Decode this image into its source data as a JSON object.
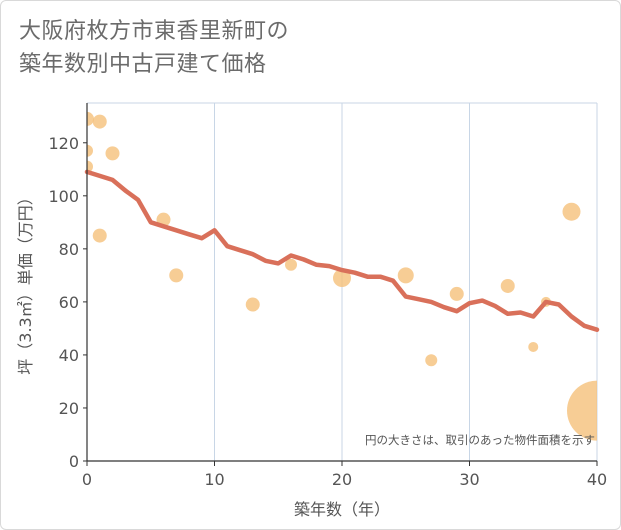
{
  "title_line1": "大阪府枚方市東香里新町の",
  "title_line2": "築年数別中古戸建て価格",
  "note": "円の大きさは、取引のあった物件面積を示す",
  "colors": {
    "line": "#d9705a",
    "bubble": "#f5c07a",
    "grid": "#c8d6e6",
    "frame": "#c8d6e6"
  },
  "chart_data": {
    "type": "scatter",
    "xlabel": "築年数（年）",
    "ylabel": "坪（3.3㎡）単価（万円）",
    "xlim": [
      0,
      40
    ],
    "ylim": [
      0,
      135
    ],
    "xticks": [
      0,
      10,
      20,
      30,
      40
    ],
    "yticks": [
      0,
      20,
      40,
      60,
      80,
      100,
      120
    ],
    "series": [
      {
        "name": "trend",
        "type": "line",
        "x": [
          0,
          1,
          2,
          3,
          4,
          5,
          6,
          7,
          8,
          9,
          10,
          11,
          12,
          13,
          14,
          15,
          16,
          17,
          18,
          19,
          20,
          21,
          22,
          23,
          24,
          25,
          26,
          27,
          28,
          29,
          30,
          31,
          32,
          33,
          34,
          35,
          36,
          37,
          38,
          39,
          40
        ],
        "y": [
          109,
          107.5,
          106,
          102,
          98.5,
          90,
          88.5,
          87,
          85.5,
          84,
          87,
          81,
          79.5,
          78,
          75.5,
          74.5,
          77.5,
          76,
          74,
          73.5,
          72,
          71,
          69.5,
          69.5,
          68,
          62,
          61,
          60,
          58,
          56.5,
          59.5,
          60.5,
          58.5,
          55.5,
          56,
          54.5,
          60,
          59,
          54.5,
          51,
          49.5
        ]
      },
      {
        "name": "transactions",
        "type": "bubble",
        "points": [
          {
            "x": 0,
            "y": 129,
            "size": 7
          },
          {
            "x": 0,
            "y": 117,
            "size": 6
          },
          {
            "x": 0,
            "y": 111,
            "size": 6
          },
          {
            "x": 1,
            "y": 128,
            "size": 7
          },
          {
            "x": 1,
            "y": 85,
            "size": 7
          },
          {
            "x": 2,
            "y": 116,
            "size": 7
          },
          {
            "x": 6,
            "y": 91,
            "size": 7
          },
          {
            "x": 7,
            "y": 70,
            "size": 7
          },
          {
            "x": 13,
            "y": 59,
            "size": 7
          },
          {
            "x": 16,
            "y": 74,
            "size": 6
          },
          {
            "x": 20,
            "y": 69,
            "size": 9
          },
          {
            "x": 25,
            "y": 70,
            "size": 8
          },
          {
            "x": 27,
            "y": 38,
            "size": 6
          },
          {
            "x": 29,
            "y": 63,
            "size": 7
          },
          {
            "x": 33,
            "y": 66,
            "size": 7
          },
          {
            "x": 35,
            "y": 43,
            "size": 5
          },
          {
            "x": 36,
            "y": 60,
            "size": 5
          },
          {
            "x": 38,
            "y": 94,
            "size": 9
          },
          {
            "x": 40,
            "y": 19,
            "size": 30
          }
        ]
      }
    ]
  }
}
